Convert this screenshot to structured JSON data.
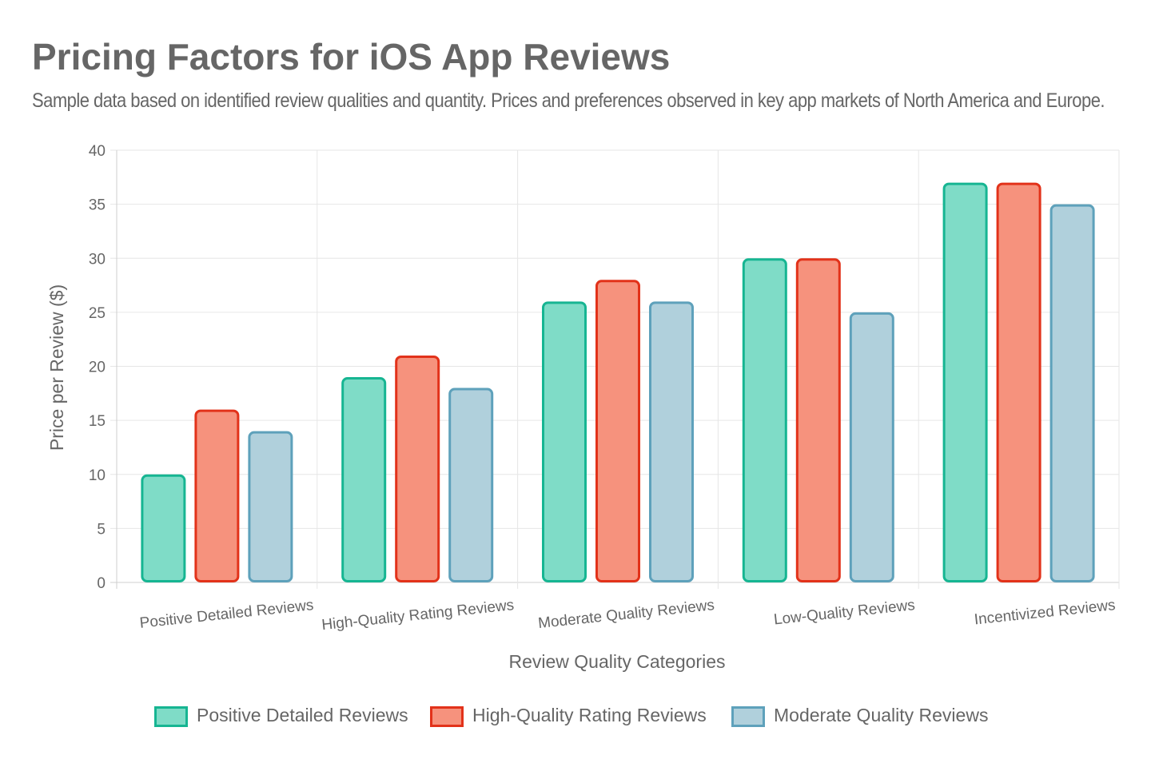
{
  "header": {
    "title": "Pricing Factors for iOS App Reviews",
    "subtitle": "Sample data based on identified review qualities and quantity. Prices and preferences observed in key app markets of North America and Europe."
  },
  "chart_data": {
    "type": "bar",
    "categories": [
      "Positive Detailed Reviews",
      "High-Quality Rating Reviews",
      "Moderate Quality Reviews",
      "Low-Quality Reviews",
      "Incentivized Reviews"
    ],
    "series": [
      {
        "name": "Positive Detailed Reviews",
        "values": [
          10,
          19,
          26,
          30,
          37
        ],
        "fill": "#7fdcc7",
        "stroke": "#16b592"
      },
      {
        "name": "High-Quality Rating Reviews",
        "values": [
          16,
          21,
          28,
          30,
          37
        ],
        "fill": "#f6927d",
        "stroke": "#e2321a"
      },
      {
        "name": "Moderate Quality Reviews",
        "values": [
          14,
          18,
          26,
          25,
          35
        ],
        "fill": "#b0d0dc",
        "stroke": "#5ea1bb"
      }
    ],
    "xlabel": "Review Quality Categories",
    "ylabel": "Price per Review ($)",
    "ylim": [
      0,
      40
    ],
    "yticks": [
      "0",
      "5",
      "10",
      "15",
      "20",
      "25",
      "30",
      "35",
      "40"
    ],
    "grid": true,
    "legend": "bottom"
  }
}
